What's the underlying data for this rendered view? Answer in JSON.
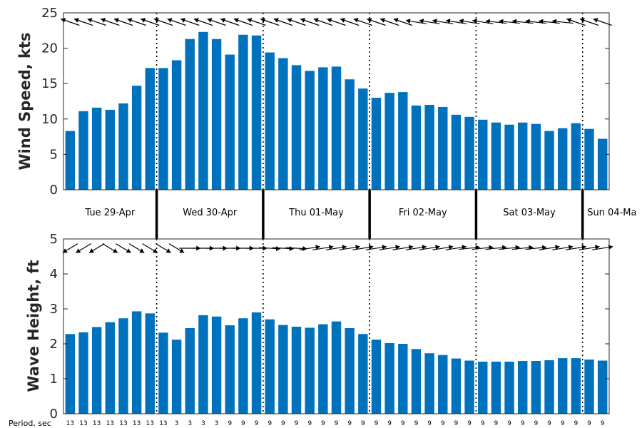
{
  "chart_data": [
    {
      "type": "bar",
      "ylabel": "Wind Speed, kts",
      "ylim": [
        0,
        25
      ],
      "yticks": [
        "0",
        "5",
        "10",
        "15",
        "20",
        "25"
      ],
      "grid": false,
      "color": "#0072bd",
      "values": [
        8.3,
        11.1,
        11.6,
        11.3,
        12.2,
        14.7,
        17.2,
        17.2,
        18.3,
        21.3,
        22.3,
        21.3,
        19.1,
        21.9,
        21.8,
        19.4,
        18.6,
        17.6,
        16.8,
        17.3,
        17.4,
        15.6,
        14.3,
        13.0,
        13.7,
        13.8,
        11.9,
        12.0,
        11.7,
        10.6,
        10.3,
        9.9,
        9.5,
        9.2,
        9.5,
        9.3,
        8.3,
        8.7,
        9.4,
        8.6,
        7.2
      ],
      "direction_arrows_deg": [
        300,
        300,
        300,
        300,
        300,
        300,
        300,
        300,
        300,
        300,
        300,
        300,
        300,
        300,
        300,
        300,
        300,
        300,
        300,
        300,
        300,
        300,
        300,
        300,
        300,
        300,
        285,
        285,
        285,
        285,
        285,
        285,
        280,
        280,
        280,
        280,
        280,
        280,
        300,
        300,
        300
      ]
    },
    {
      "type": "bar",
      "ylabel": "Wave Height, ft",
      "ylim": [
        0,
        5
      ],
      "yticks": [
        "0",
        "1",
        "2",
        "3",
        "4",
        "5"
      ],
      "grid": false,
      "color": "#0072bd",
      "values": [
        2.28,
        2.33,
        2.48,
        2.62,
        2.73,
        2.93,
        2.87,
        2.32,
        2.12,
        2.45,
        2.82,
        2.78,
        2.53,
        2.73,
        2.9,
        2.7,
        2.54,
        2.49,
        2.46,
        2.56,
        2.64,
        2.45,
        2.28,
        2.12,
        2.02,
        2.0,
        1.85,
        1.73,
        1.68,
        1.58,
        1.52,
        1.49,
        1.49,
        1.49,
        1.51,
        1.51,
        1.53,
        1.59,
        1.59,
        1.55,
        1.52
      ],
      "direction_arrows_deg": [
        225,
        225,
        225,
        135,
        135,
        135,
        135,
        135,
        135,
        90,
        90,
        90,
        90,
        90,
        90,
        95,
        95,
        95,
        75,
        75,
        75,
        75,
        75,
        75,
        75,
        75,
        75,
        75,
        75,
        75,
        80,
        80,
        80,
        80,
        80,
        80,
        75,
        75,
        75,
        75,
        75
      ],
      "xlabel": "Period, sec",
      "period_labels": [
        "13",
        "13",
        "13",
        "13",
        "13",
        "13",
        "13",
        "13",
        "3",
        "3",
        "3",
        "3",
        "9",
        "9",
        "9",
        "9",
        "9",
        "9",
        "9",
        "9",
        "9",
        "9",
        "9",
        "9",
        "9",
        "9",
        "9",
        "9",
        "9",
        "9",
        "9",
        "9",
        "9",
        "9",
        "9",
        "9",
        "9",
        "9",
        "9",
        "9",
        "9"
      ]
    }
  ],
  "days": [
    "Tue 29-Apr",
    "Wed 30-Apr",
    "Thu 01-May",
    "Fri 02-May",
    "Sat 03-May",
    "Sun 04-Ma"
  ],
  "day_boundaries_index": [
    6.5,
    14.5,
    22.5,
    30.5,
    38.5
  ]
}
